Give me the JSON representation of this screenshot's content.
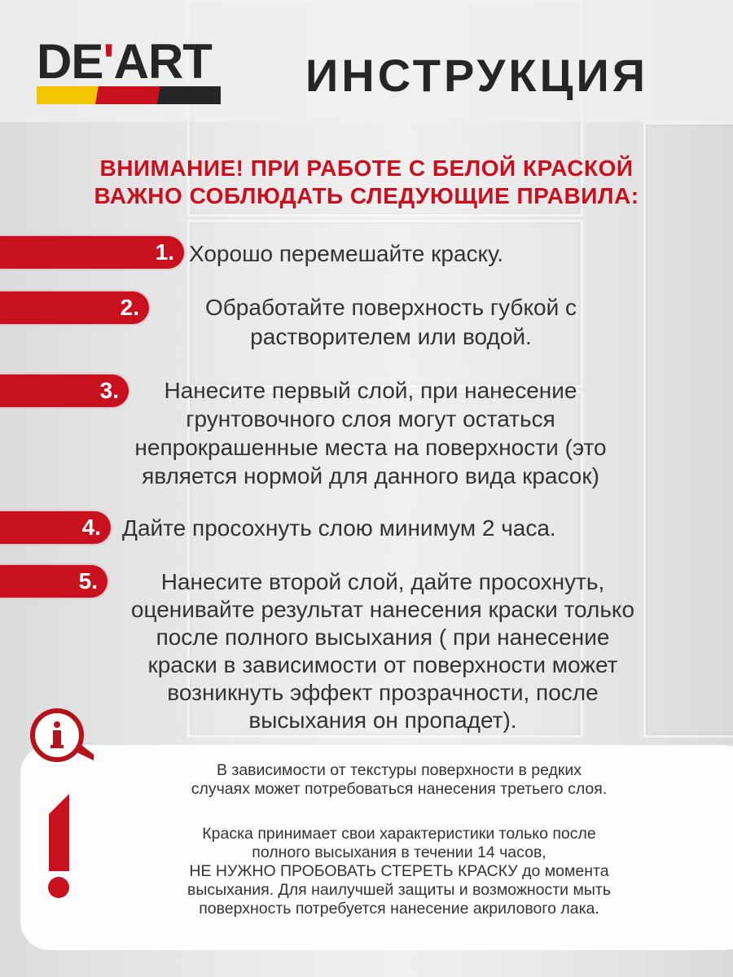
{
  "brand": {
    "logo_text": "DEART",
    "colors": {
      "yellow": "#f2c500",
      "red": "#c8101e",
      "black": "#262626"
    }
  },
  "header": {
    "title": "ИНСТРУКЦИЯ"
  },
  "warning": {
    "line1": "ВНИМАНИЕ! ПРИ РАБОТЕ С БЕЛОЙ КРАСКОЙ",
    "line2": "ВАЖНО СОБЛЮДАТЬ СЛЕДУЮЩИЕ ПРАВИЛА:"
  },
  "steps": [
    {
      "num": "1.",
      "text": "Хорошо перемешайте краску."
    },
    {
      "num": "2.",
      "text": "Обработайте поверхность губкой с\nрастворителем или водой."
    },
    {
      "num": "3.",
      "text": "Нанесите первый слой, при нанесение\nгрунтовочного слоя могут остаться\nнепрокрашенные места на поверхности (это\nявляется нормой для данного вида красок)"
    },
    {
      "num": "4.",
      "text": "Дайте просохнуть слою минимум 2 часа."
    },
    {
      "num": "5.",
      "text": "Нанесите второй слой, дайте просохнуть,\nоценивайте результат нанесения краски только\nпосле полного высыхания ( при нанесение\nкраски в зависимости от поверхности может\nвозникнуть эффект прозрачности, после\nвысыхания он пропадет)."
    }
  ],
  "note": {
    "p1": "В зависимости от текстуры поверхности в редких\nслучаях может потребоваться нанесения третьего слоя.",
    "p2": "Краска принимает свои характеристики только после\nполного высыхания в течении 14 часов,\nНЕ НУЖНО  ПРОБОВАТЬ СТЕРЕТЬ КРАСКУ до момента\nвысыхания. Для наилучшей защиты и возможности мыть\nповерхность потребуется нанесение акрилового лака."
  },
  "icons": [
    "info-bubble-icon",
    "exclamation-icon"
  ]
}
